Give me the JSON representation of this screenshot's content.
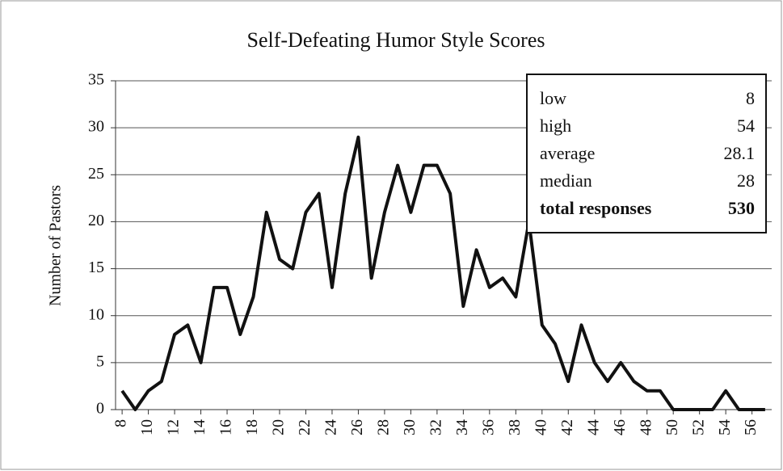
{
  "chart_data": {
    "type": "line",
    "title": "Self-Defeating Humor Style Scores",
    "y_label": "Number of Pastors",
    "x": [
      8,
      9,
      10,
      11,
      12,
      13,
      14,
      15,
      16,
      17,
      18,
      19,
      20,
      21,
      22,
      23,
      24,
      25,
      26,
      27,
      28,
      29,
      30,
      31,
      32,
      33,
      34,
      35,
      36,
      37,
      38,
      39,
      40,
      41,
      42,
      43,
      44,
      45,
      46,
      47,
      48,
      49,
      50,
      51,
      52,
      53,
      54,
      55,
      56,
      57
    ],
    "series": [
      {
        "name": "Number of Pastors",
        "color": "#111111",
        "values": [
          2,
          0,
          2,
          3,
          8,
          9,
          5,
          13,
          13,
          8,
          12,
          21,
          16,
          15,
          21,
          23,
          13,
          23,
          29,
          14,
          21,
          26,
          21,
          26,
          26,
          23,
          11,
          17,
          13,
          14,
          12,
          20,
          9,
          7,
          3,
          9,
          5,
          3,
          5,
          3,
          2,
          2,
          0,
          0,
          0,
          0,
          2,
          0,
          0,
          0
        ]
      }
    ],
    "xlim": [
      7.5,
      57.5
    ],
    "xticks": [
      8,
      10,
      12,
      14,
      16,
      18,
      20,
      22,
      24,
      26,
      28,
      30,
      32,
      34,
      36,
      38,
      40,
      42,
      44,
      46,
      48,
      50,
      52,
      54,
      56
    ],
    "ylim": [
      0,
      35
    ],
    "yticks": [
      0,
      5,
      10,
      15,
      20,
      25,
      30,
      35
    ],
    "grid": true,
    "stats": [
      {
        "label": "low",
        "value": 8
      },
      {
        "label": "high",
        "value": 54
      },
      {
        "label": "average",
        "value": 28.1
      },
      {
        "label": "median",
        "value": 28
      },
      {
        "label": "total responses",
        "value": 530
      }
    ]
  }
}
